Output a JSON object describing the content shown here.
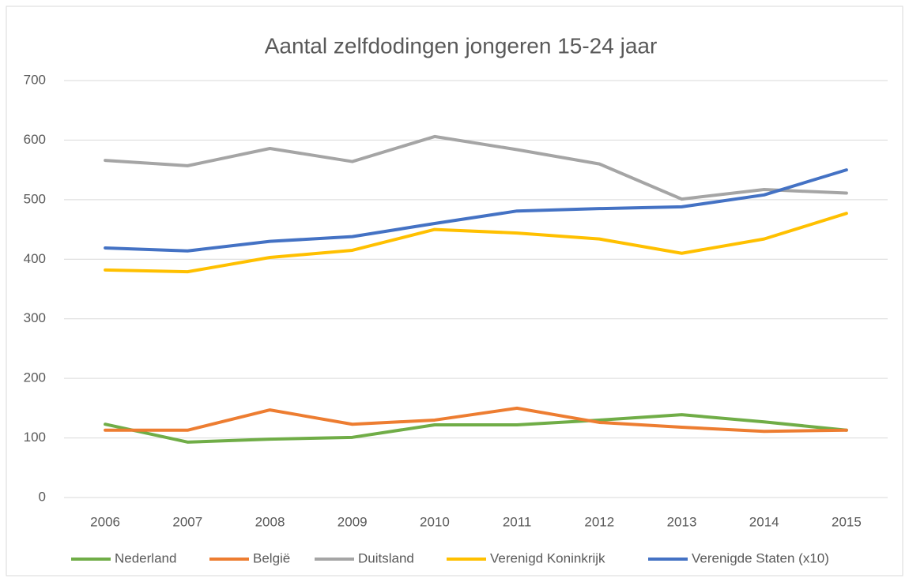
{
  "chart_data": {
    "type": "line",
    "title": "Aantal zelfdodingen jongeren 15-24 jaar",
    "categories": [
      "2006",
      "2007",
      "2008",
      "2009",
      "2010",
      "2011",
      "2012",
      "2013",
      "2014",
      "2015"
    ],
    "series": [
      {
        "name": "Nederland",
        "color": "#70ad47",
        "values": [
          123,
          93,
          98,
          101,
          122,
          122,
          130,
          139,
          127,
          113
        ]
      },
      {
        "name": "België",
        "color": "#ed7d31",
        "values": [
          113,
          113,
          147,
          123,
          130,
          150,
          126,
          118,
          111,
          113
        ]
      },
      {
        "name": "Duitsland",
        "color": "#a5a5a5",
        "values": [
          566,
          557,
          586,
          564,
          606,
          584,
          560,
          501,
          517,
          511
        ]
      },
      {
        "name": "Verenigd Koninkrijk",
        "color": "#ffc000",
        "values": [
          382,
          379,
          403,
          415,
          450,
          444,
          434,
          410,
          434,
          477
        ]
      },
      {
        "name": "Verenigde Staten (x10)",
        "color": "#4472c4",
        "values": [
          419,
          414,
          430,
          438,
          460,
          481,
          485,
          488,
          508,
          550
        ]
      }
    ],
    "ylim": [
      0,
      700
    ],
    "yticks": [
      0,
      100,
      200,
      300,
      400,
      500,
      600,
      700
    ],
    "grid": true,
    "legend": "bottom"
  }
}
